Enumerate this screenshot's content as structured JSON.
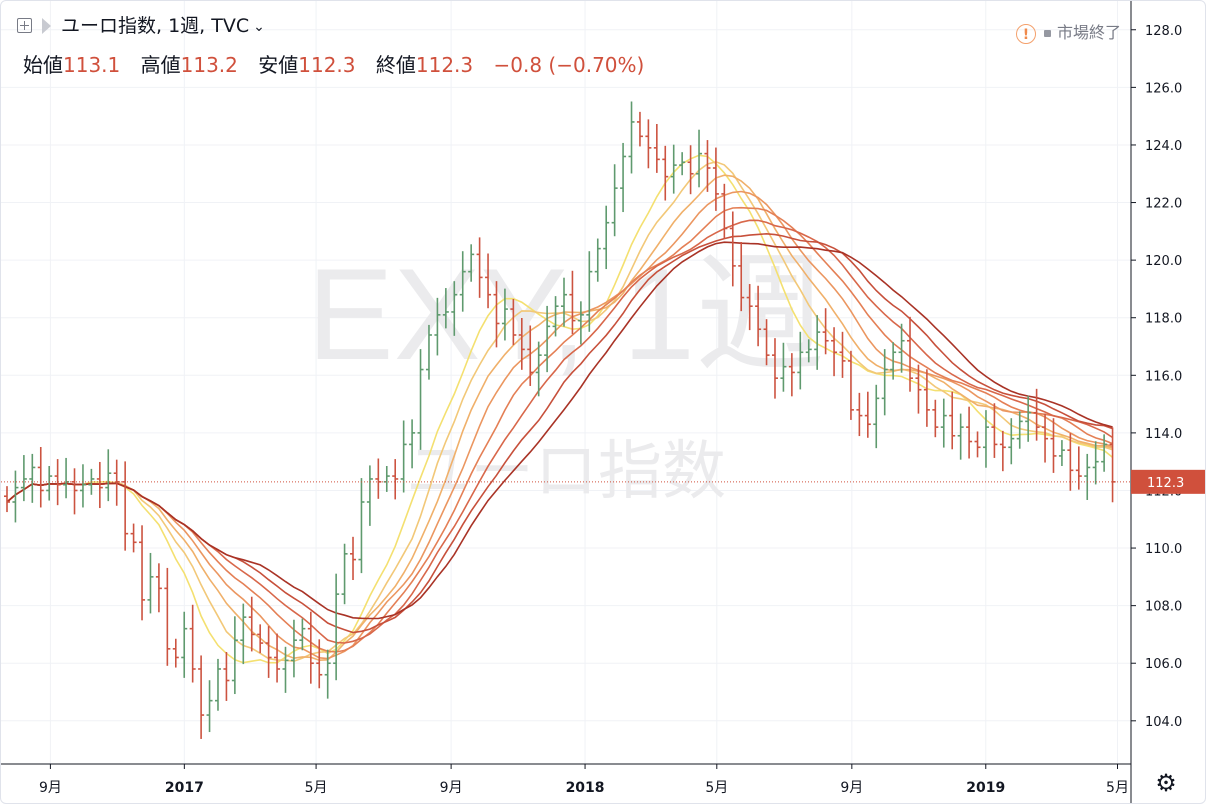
{
  "header": {
    "symbol_title": "ユーロ指数, 1週, TVC",
    "ohlc": [
      {
        "label": "始値",
        "value": "113.1"
      },
      {
        "label": "高値",
        "value": "113.2"
      },
      {
        "label": "安値",
        "value": "112.3"
      },
      {
        "label": "終値",
        "value": "112.3"
      }
    ],
    "change": "−0.8 (−0.70%)",
    "market_status": "市場終了"
  },
  "watermark": {
    "line1": "EXY, 1週",
    "line2": "ユーロ指数"
  },
  "icons": [
    "add-symbol-icon",
    "flag-icon",
    "chevron-down-icon",
    "alert-icon",
    "gear-icon"
  ],
  "colors": {
    "up": "#5f9a6e",
    "down": "#cc5340",
    "price_tag": "#d0503c",
    "ribbon": [
      "#f4e070",
      "#f2c878",
      "#f0b06a",
      "#eb9660",
      "#e47f55",
      "#d8674a",
      "#c7503b",
      "#a93326"
    ]
  },
  "chart_data": {
    "type": "ohlc",
    "title": "ユーロ指数, 1週, TVC",
    "ylim": [
      102.5,
      129
    ],
    "y_ticks": [
      104.0,
      106.0,
      108.0,
      110.0,
      112.0,
      114.0,
      116.0,
      118.0,
      120.0,
      122.0,
      124.0,
      126.0,
      128.0
    ],
    "x_ticks": [
      {
        "label": "9月",
        "date": "2016-09-01"
      },
      {
        "label": "2017",
        "date": "2017-01-01"
      },
      {
        "label": "5月",
        "date": "2017-05-01"
      },
      {
        "label": "9月",
        "date": "2017-09-01"
      },
      {
        "label": "2018",
        "date": "2018-01-01"
      },
      {
        "label": "5月",
        "date": "2018-05-01"
      },
      {
        "label": "9月",
        "date": "2018-09-01"
      },
      {
        "label": "2019",
        "date": "2019-01-01"
      },
      {
        "label": "5月",
        "date": "2019-05-01"
      }
    ],
    "x_range": [
      "2016-07-18",
      "2019-05-06"
    ],
    "last_price": 112.3,
    "bars_close": [
      111.6,
      112.1,
      112.4,
      112.8,
      112.0,
      112.5,
      112.2,
      112.3,
      112.0,
      112.2,
      112.4,
      112.1,
      112.6,
      112.3,
      110.5,
      110.2,
      108.2,
      109.0,
      108.6,
      106.5,
      106.2,
      107.2,
      105.8,
      104.2,
      104.7,
      105.8,
      105.4,
      106.8,
      107.6,
      107.0,
      106.7,
      106.2,
      105.8,
      106.1,
      106.8,
      107.2,
      106.0,
      105.6,
      106.0,
      108.4,
      109.8,
      109.6,
      111.6,
      112.4,
      112.3,
      112.5,
      112.4,
      113.6,
      114.0,
      116.2,
      117.4,
      118.1,
      118.2,
      118.8,
      119.6,
      120.2,
      119.4,
      118.8,
      117.8,
      118.3,
      117.4,
      116.9,
      116.1,
      116.7,
      117.7,
      118.4,
      118.8,
      117.9,
      118.1,
      119.6,
      120.4,
      121.3,
      122.5,
      123.6,
      124.8,
      124.3,
      123.9,
      123.5,
      122.9,
      123.3,
      123.4,
      123.0,
      123.7,
      123.2,
      122.3,
      121.1,
      119.8,
      118.7,
      118.4,
      117.6,
      116.7,
      115.9,
      116.3,
      116.1,
      116.8,
      116.9,
      117.5,
      117.2,
      116.8,
      116.5,
      114.8,
      114.6,
      114.3,
      115.2,
      116.2,
      116.8,
      117.2,
      115.9,
      115.5,
      114.8,
      114.2,
      114.6,
      113.9,
      114.2,
      113.7,
      113.5,
      114.2,
      113.6,
      113.5,
      113.8,
      114.4,
      114.7,
      114.2,
      113.8,
      113.2,
      113.4,
      112.7,
      112.5,
      112.8,
      113.0,
      113.6,
      112.3
    ]
  }
}
